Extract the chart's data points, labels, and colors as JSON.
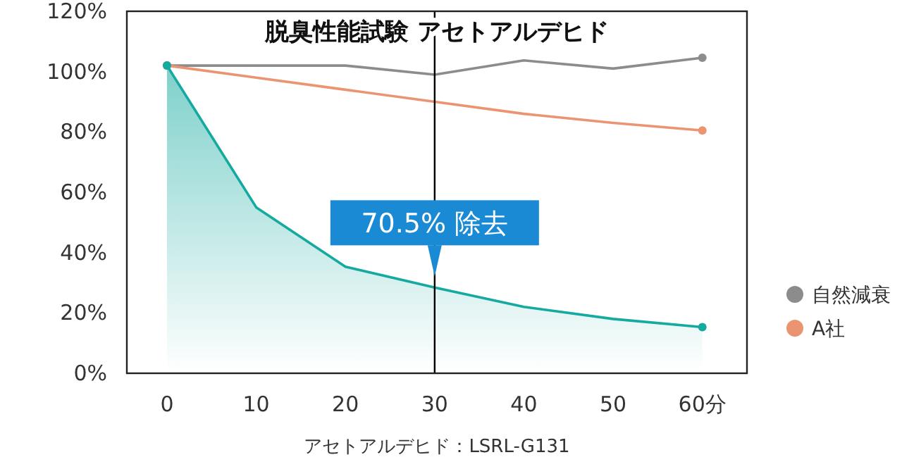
{
  "chart_data": {
    "type": "line",
    "title": "脱臭性能試験 アセトアルデヒド",
    "x": [
      0,
      10,
      20,
      30,
      40,
      50,
      60
    ],
    "series": [
      {
        "name": "自然減衰",
        "color": "#8c8c8c",
        "values": [
          102,
          102,
          102,
          99,
          103.7,
          101,
          104.6
        ]
      },
      {
        "name": "A社",
        "color": "#eb9471",
        "values": [
          102,
          98,
          94,
          90,
          86,
          83,
          80.5
        ]
      },
      {
        "type": "area",
        "color": "#14aaa0",
        "values": [
          102,
          55,
          35.3,
          28.4,
          22,
          18,
          15.3
        ]
      }
    ],
    "xlim": [
      -4.5,
      65
    ],
    "xticks": [
      0,
      10,
      20,
      30,
      40,
      50,
      {
        "value": 60,
        "label": "60分"
      }
    ],
    "ylim": [
      0,
      120
    ],
    "yticks": [
      {
        "value": 0,
        "label": "0%"
      },
      {
        "value": 20,
        "label": "20%"
      },
      {
        "value": 40,
        "label": "40%"
      },
      {
        "value": 60,
        "label": "60%"
      },
      {
        "value": 80,
        "label": "80%"
      },
      {
        "value": 100,
        "label": "100%"
      },
      {
        "value": 120,
        "label": "120%"
      }
    ],
    "ref_lines": [
      {
        "axis": "x",
        "value": 30,
        "color": "#000000"
      }
    ],
    "annotations": [
      {
        "text": "70.5% 除去",
        "x": 30,
        "y": 28.4
      },
      "アセトアルデヒド：LSRL-G131"
    ],
    "legend": "bottom right",
    "grid": false
  }
}
